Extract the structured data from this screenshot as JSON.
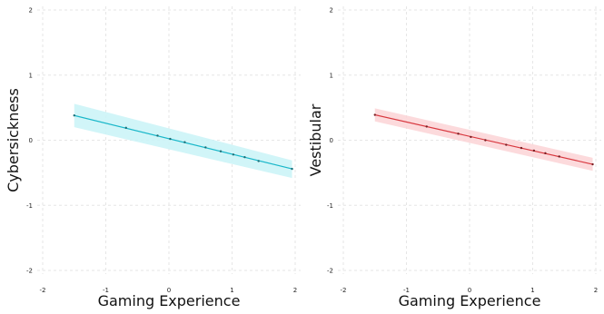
{
  "chart_data": [
    {
      "type": "line",
      "xlabel": "Gaming Experience",
      "ylabel": "Cybersickness",
      "xlim": [
        -2,
        2
      ],
      "ylim": [
        -2,
        2
      ],
      "x_ticks": [
        "-2",
        "-1",
        "0",
        "1",
        "2"
      ],
      "y_ticks": [
        "2",
        "1",
        "0",
        "-1",
        "-2"
      ],
      "grid": true,
      "line_color": "#19b7c9",
      "band_color": "#c9f3f7",
      "points_color": "#1a6f78",
      "line": {
        "x": [
          -1.5,
          1.95
        ],
        "y": [
          0.38,
          -0.44
        ]
      },
      "band": {
        "x": [
          -1.5,
          1.95
        ],
        "upper": [
          0.56,
          -0.31
        ],
        "lower": [
          0.2,
          -0.58
        ]
      },
      "points": {
        "x": [
          -1.5,
          -0.68,
          -0.18,
          0.02,
          0.25,
          0.58,
          0.82,
          1.02,
          1.2,
          1.42,
          1.95
        ],
        "y": [
          0.38,
          0.19,
          0.07,
          0.02,
          -0.03,
          -0.11,
          -0.17,
          -0.22,
          -0.26,
          -0.32,
          -0.44
        ]
      }
    },
    {
      "type": "line",
      "xlabel": "Gaming Experience",
      "ylabel": "Vestibular",
      "xlim": [
        -2,
        2
      ],
      "ylim": [
        -2,
        2
      ],
      "x_ticks": [
        "-2",
        "-1",
        "0",
        "1",
        "2"
      ],
      "y_ticks": [
        "2",
        "1",
        "0",
        "-1",
        "-2"
      ],
      "grid": true,
      "line_color": "#d8383f",
      "band_color": "#fbd3d6",
      "points_color": "#7a1e22",
      "line": {
        "x": [
          -1.5,
          1.95
        ],
        "y": [
          0.39,
          -0.37
        ]
      },
      "band": {
        "x": [
          -1.5,
          1.95
        ],
        "upper": [
          0.49,
          -0.27
        ],
        "lower": [
          0.29,
          -0.47
        ]
      },
      "points": {
        "x": [
          -1.5,
          -0.68,
          -0.18,
          0.02,
          0.25,
          0.58,
          0.82,
          1.02,
          1.2,
          1.42,
          1.95
        ],
        "y": [
          0.39,
          0.21,
          0.1,
          0.05,
          0.0,
          -0.07,
          -0.12,
          -0.16,
          -0.2,
          -0.25,
          -0.37
        ]
      }
    }
  ]
}
